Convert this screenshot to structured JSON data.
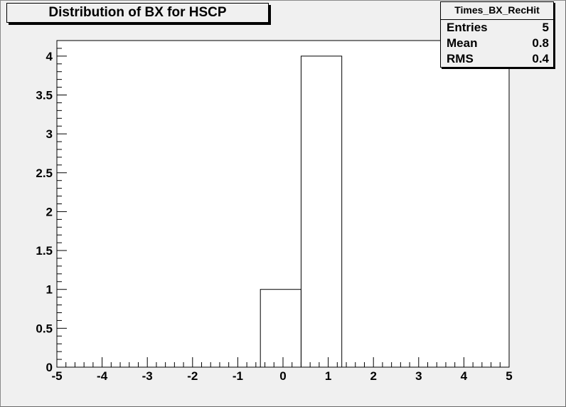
{
  "chart_data": {
    "type": "bar",
    "title": "Distribution of BX for HSCP",
    "xlabel": "",
    "ylabel": "",
    "xlim": [
      -5,
      5
    ],
    "ylim": [
      0,
      4.2
    ],
    "bin_edges": [
      -0.5,
      0.4,
      1.3
    ],
    "values": [
      1,
      4
    ],
    "x_ticks": [
      -5,
      -4,
      -3,
      -2,
      -1,
      0,
      1,
      2,
      3,
      4,
      5
    ],
    "x_tick_labels": [
      "-5",
      "-4",
      "-3",
      "-2",
      "-1",
      "0",
      "1",
      "2",
      "3",
      "4",
      "5"
    ],
    "y_ticks": [
      0,
      0.5,
      1,
      1.5,
      2,
      2.5,
      3,
      3.5,
      4
    ],
    "y_tick_labels": [
      "0",
      "0.5",
      "1",
      "1.5",
      "2",
      "2.5",
      "3",
      "3.5",
      "4"
    ],
    "grid": false,
    "legend": "none"
  },
  "stats": {
    "name": "Times_BX_RecHit",
    "entries_label": "Entries",
    "entries_value": "5",
    "mean_label": "Mean",
    "mean_value": "0.8",
    "rms_label": "RMS",
    "rms_value": "0.4"
  }
}
